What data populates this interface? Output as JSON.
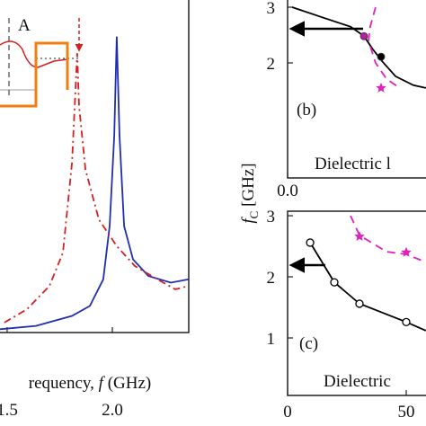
{
  "chart_data": [
    {
      "type": "line",
      "xlabel": "requency, ",
      "xlabel_var": "f",
      "xlabel_unit": " (GHz)",
      "xlim": [
        1.466,
        2.363
      ],
      "ylim": [
        0,
        1
      ],
      "xticks": [
        1.5,
        {
          "value": 2,
          "label": "2.0"
        }
      ],
      "annotations": [
        "A"
      ],
      "series": [
        {
          "color": "#1f2fb0",
          "dash": "solid",
          "x": [
            1.466,
            1.637,
            1.808,
            1.893,
            1.957,
            1.987,
            2.009,
            2.021,
            2.034,
            2.056,
            2.098,
            2.171,
            2.278,
            2.363
          ],
          "values": [
            0.01,
            0.02,
            0.05,
            0.08,
            0.16,
            0.32,
            0.59,
            0.89,
            0.59,
            0.32,
            0.22,
            0.17,
            0.15,
            0.16
          ]
        },
        {
          "color": "#d42020",
          "dash": "dashdot",
          "x": [
            1.487,
            1.594,
            1.701,
            1.765,
            1.808,
            1.825,
            1.833,
            1.842,
            1.872,
            1.936,
            2.021,
            2.107,
            2.214,
            2.299,
            2.363
          ],
          "values": [
            0.03,
            0.07,
            0.14,
            0.24,
            0.51,
            0.73,
            0.84,
            0.68,
            0.49,
            0.34,
            0.26,
            0.2,
            0.16,
            0.13,
            0.14
          ]
        }
      ]
    },
    {
      "type": "line",
      "xlim": [
        0,
        58.3
      ],
      "ylim": [
        -0.065,
        3.129
      ],
      "xticks": [
        {
          "value": 0,
          "label": "0.0"
        }
      ],
      "yticks": [
        2,
        3
      ],
      "annotations": [
        "(b)",
        "Dielectric l"
      ],
      "series": [
        {
          "color": "#000000",
          "dash": "solid",
          "line": true,
          "x": [
            1.9,
            15.2,
            26.5,
            32.2,
            36,
            39.8,
            45.5,
            53,
            58.3
          ],
          "values": [
            3.0,
            2.81,
            2.65,
            2.48,
            2.24,
            2.03,
            1.76,
            1.6,
            1.55
          ]
        },
        {
          "color": "#e020c0",
          "dash": "dash",
          "line": true,
          "x": [
            37.1,
            34.8,
            34.1,
            37.1,
            41.7,
            47.3
          ],
          "values": [
            3.0,
            2.65,
            2.4,
            2.0,
            1.71,
            1.55
          ]
        },
        {
          "color": "#b020a0",
          "line": false,
          "marker": "circle",
          "x": [
            32.2
          ],
          "values": [
            2.48
          ]
        },
        {
          "color": "#000000",
          "line": false,
          "marker": "dot",
          "x": [
            39.4
          ],
          "values": [
            2.11
          ]
        },
        {
          "color": "#e020c0",
          "line": false,
          "marker": "star",
          "x": [
            39.4
          ],
          "values": [
            1.55
          ]
        }
      ]
    },
    {
      "type": "line",
      "ylabel": "f",
      "ylabel_sub": "C",
      "ylabel_unit": " [GHz]",
      "xlim": [
        0,
        58.3
      ],
      "ylim": [
        0.059,
        3.074
      ],
      "xticks": [
        0,
        50
      ],
      "yticks": [
        1,
        2,
        3
      ],
      "annotations": [
        "(c)",
        "Dielectric"
      ],
      "series": [
        {
          "color": "#000000",
          "dash": "solid",
          "line": true,
          "x": [
            9.5,
            19.7,
            30.3,
            50,
            58.3
          ],
          "values": [
            2.56,
            1.91,
            1.56,
            1.26,
            1.12
          ]
        },
        {
          "color": "#e020c0",
          "dash": "dash",
          "line": true,
          "x": [
            26.5,
            30.3,
            41.7,
            50,
            58.3
          ],
          "values": [
            3.0,
            2.68,
            2.41,
            2.37,
            2.24
          ]
        },
        {
          "color": "#000000",
          "line": false,
          "marker": "open",
          "x": [
            9.5,
            19.7,
            30.3,
            50
          ],
          "values": [
            2.56,
            1.91,
            1.56,
            1.26
          ]
        },
        {
          "color": "#e020c0",
          "line": false,
          "marker": "star",
          "x": [
            30.3,
            50
          ],
          "values": [
            2.66,
            2.4
          ]
        }
      ]
    }
  ]
}
